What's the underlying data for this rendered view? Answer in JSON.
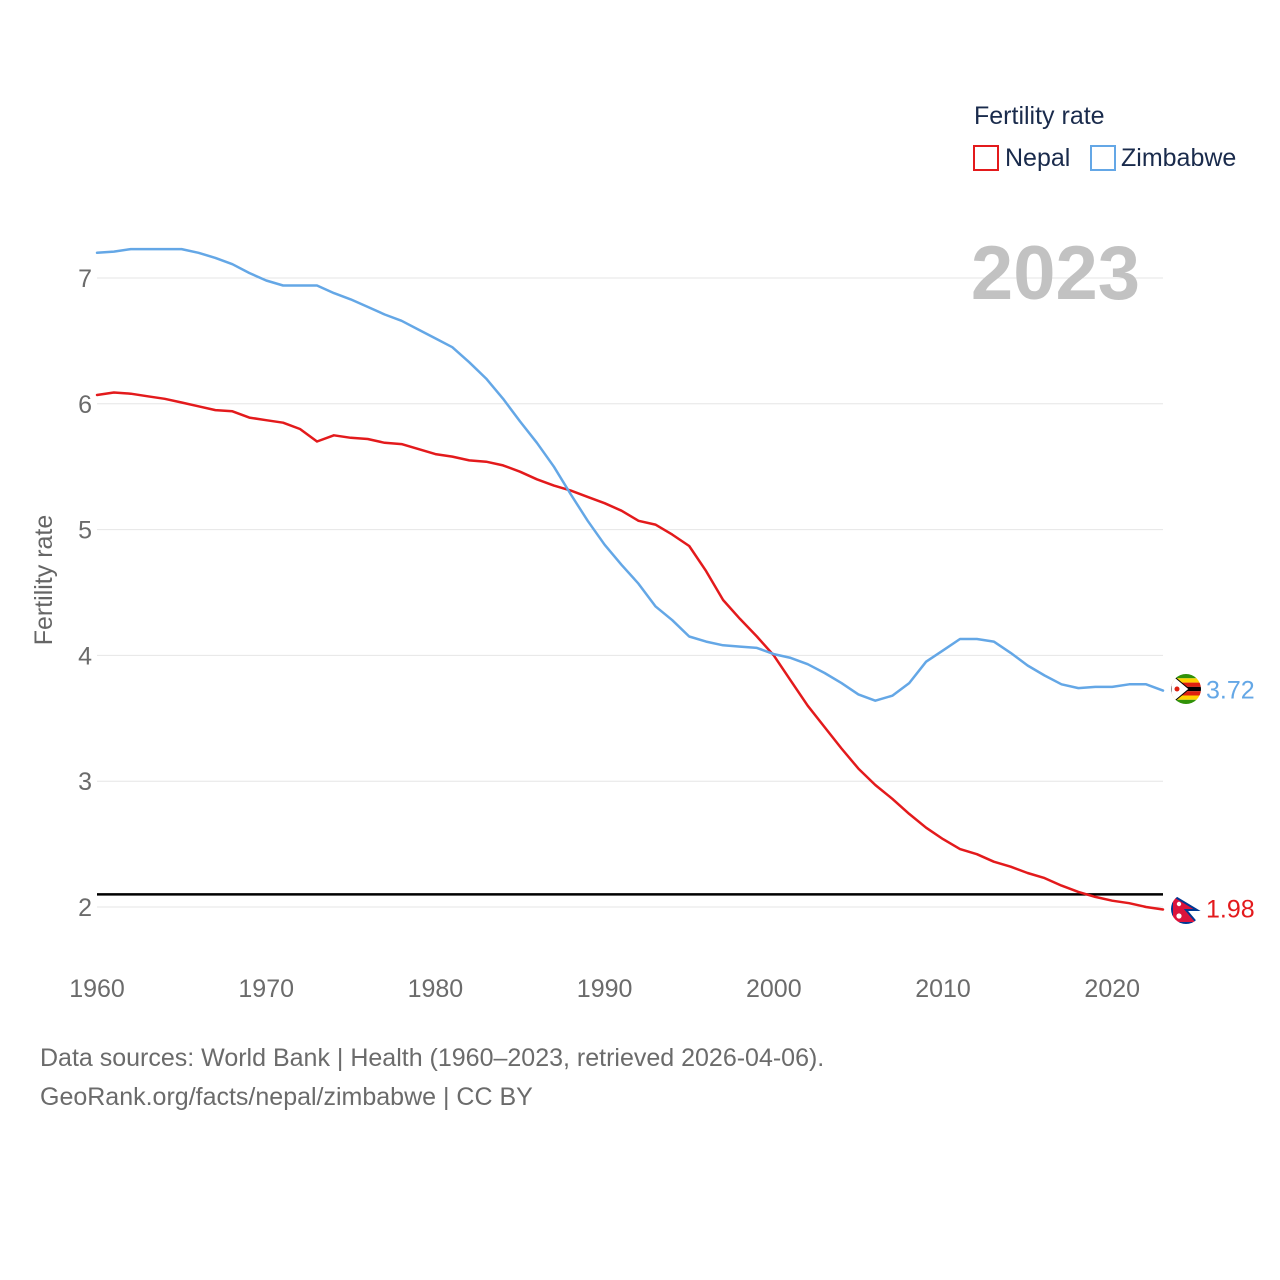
{
  "footer": {
    "sources": "Data sources: World Bank | Health (1960–2023, retrieved 2026-04-06).",
    "credit": "GeoRank.org/facts/nepal/zimbabwe | CC BY"
  },
  "chart_data": {
    "type": "line",
    "title": "Fertility rate",
    "year_label": "2023",
    "xlabel": "",
    "ylabel": "Fertility rate",
    "xlim": [
      1960,
      2023
    ],
    "ylim": [
      1.5,
      7.6
    ],
    "x_ticks": [
      1960,
      1970,
      1980,
      1990,
      2000,
      2010,
      2020
    ],
    "y_ticks": [
      2,
      3,
      4,
      5,
      6,
      7
    ],
    "grid": true,
    "legend_position": "top-right",
    "reference_line": {
      "y": 2.1,
      "color": "#000000"
    },
    "x": [
      1960,
      1961,
      1962,
      1963,
      1964,
      1965,
      1966,
      1967,
      1968,
      1969,
      1970,
      1971,
      1972,
      1973,
      1974,
      1975,
      1976,
      1977,
      1978,
      1979,
      1980,
      1981,
      1982,
      1983,
      1984,
      1985,
      1986,
      1987,
      1988,
      1989,
      1990,
      1991,
      1992,
      1993,
      1994,
      1995,
      1996,
      1997,
      1998,
      1999,
      2000,
      2001,
      2002,
      2003,
      2004,
      2005,
      2006,
      2007,
      2008,
      2009,
      2010,
      2011,
      2012,
      2013,
      2014,
      2015,
      2016,
      2017,
      2018,
      2019,
      2020,
      2021,
      2022,
      2023
    ],
    "series": [
      {
        "name": "Nepal",
        "color": "#e31a1c",
        "end_label": "1.98",
        "flag": "nepal-flag-icon",
        "values": [
          6.07,
          6.09,
          6.08,
          6.06,
          6.04,
          6.01,
          5.98,
          5.95,
          5.94,
          5.89,
          5.87,
          5.85,
          5.8,
          5.7,
          5.75,
          5.73,
          5.72,
          5.69,
          5.68,
          5.64,
          5.6,
          5.58,
          5.55,
          5.54,
          5.51,
          5.46,
          5.4,
          5.35,
          5.31,
          5.26,
          5.21,
          5.15,
          5.07,
          5.04,
          4.96,
          4.87,
          4.67,
          4.44,
          4.29,
          4.15,
          4.0,
          3.8,
          3.6,
          3.43,
          3.26,
          3.1,
          2.97,
          2.86,
          2.74,
          2.63,
          2.54,
          2.46,
          2.42,
          2.36,
          2.32,
          2.27,
          2.23,
          2.17,
          2.12,
          2.08,
          2.05,
          2.03,
          2.0,
          1.98
        ]
      },
      {
        "name": "Zimbabwe",
        "color": "#64a7e6",
        "end_label": "3.72",
        "flag": "zimbabwe-flag-icon",
        "values": [
          7.2,
          7.21,
          7.23,
          7.23,
          7.23,
          7.23,
          7.2,
          7.16,
          7.11,
          7.04,
          6.98,
          6.94,
          6.94,
          6.94,
          6.88,
          6.83,
          6.77,
          6.71,
          6.66,
          6.59,
          6.52,
          6.45,
          6.33,
          6.2,
          6.04,
          5.86,
          5.69,
          5.5,
          5.28,
          5.07,
          4.88,
          4.72,
          4.57,
          4.39,
          4.28,
          4.15,
          4.11,
          4.08,
          4.07,
          4.06,
          4.01,
          3.98,
          3.93,
          3.86,
          3.78,
          3.69,
          3.64,
          3.68,
          3.78,
          3.95,
          4.04,
          4.13,
          4.13,
          4.11,
          4.02,
          3.92,
          3.84,
          3.77,
          3.74,
          3.75,
          3.75,
          3.77,
          3.77,
          3.72
        ]
      }
    ]
  }
}
